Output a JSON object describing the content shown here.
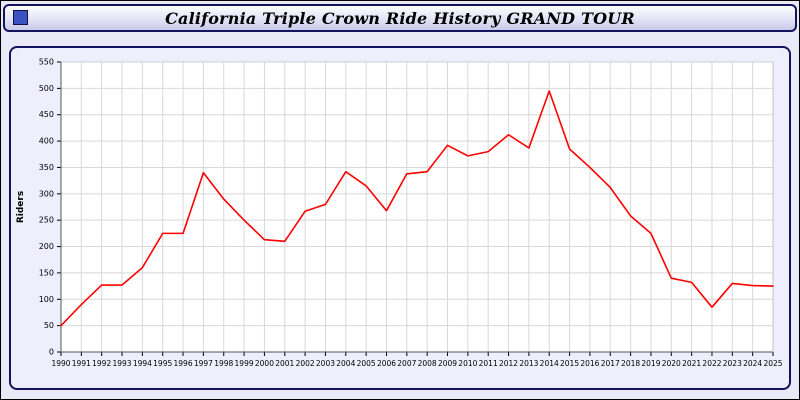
{
  "titlebar": {
    "title": "California Triple Crown Ride History GRAND TOUR"
  },
  "chart_data": {
    "type": "line",
    "title": "California Triple Crown Ride History GRAND TOUR",
    "xlabel": "",
    "ylabel": "Riders",
    "ylim": [
      0,
      550
    ],
    "ytick_step": 50,
    "grid": true,
    "legend": "none",
    "line_color": "#ff0000",
    "categories": [
      "1990",
      "1991",
      "1992",
      "1993",
      "1994",
      "1995",
      "1996",
      "1997",
      "1998",
      "1999",
      "2000",
      "2001",
      "2002",
      "2003",
      "2004",
      "2005",
      "2006",
      "2007",
      "2008",
      "2009",
      "2010",
      "2011",
      "2012",
      "2013",
      "2014",
      "2015",
      "2016",
      "2017",
      "2018",
      "2019",
      "2020",
      "2021",
      "2022",
      "2023",
      "2024",
      "2025"
    ],
    "series": [
      {
        "name": "Riders",
        "values": [
          50,
          90,
          127,
          127,
          160,
          225,
          225,
          340,
          290,
          250,
          213,
          210,
          267,
          280,
          342,
          315,
          268,
          338,
          342,
          392,
          372,
          380,
          412,
          387,
          495,
          385,
          350,
          312,
          258,
          225,
          140,
          132,
          85,
          130,
          126,
          125
        ]
      }
    ]
  }
}
